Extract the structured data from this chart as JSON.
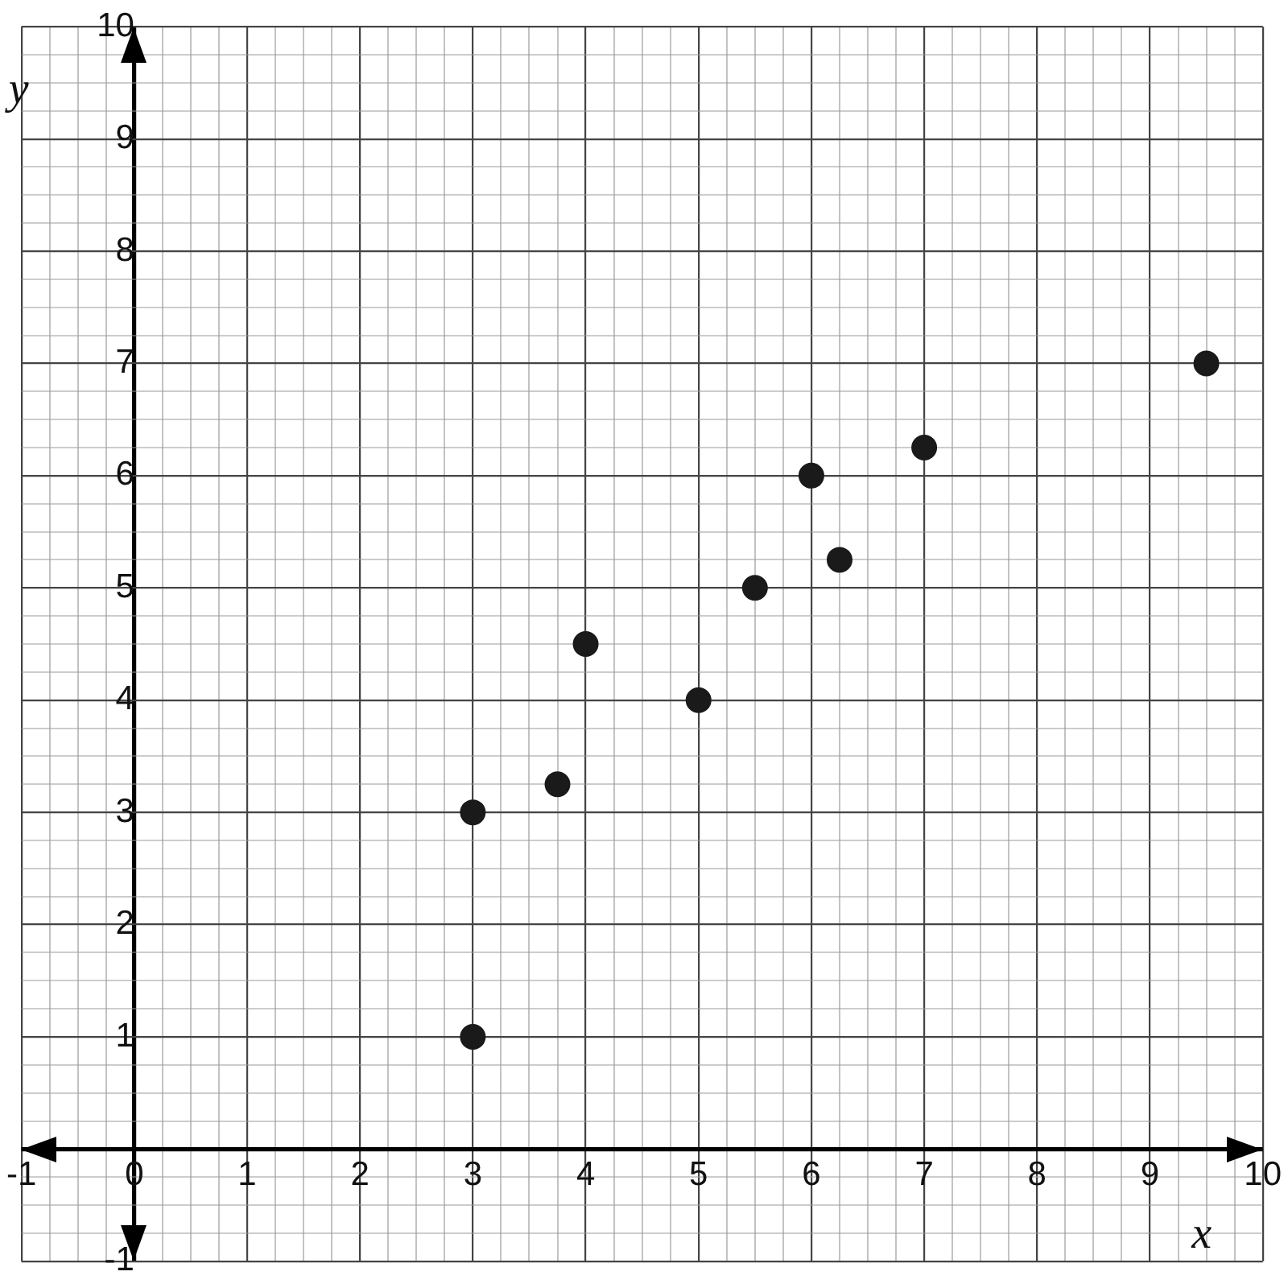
{
  "chart_data": {
    "type": "scatter",
    "xlabel": "x",
    "ylabel": "y",
    "x": [
      3,
      3,
      3.75,
      4,
      5,
      5.5,
      6,
      6.25,
      7,
      9.5
    ],
    "values": [
      1,
      3,
      3.25,
      4.5,
      4,
      5,
      6,
      5.25,
      6.25,
      7
    ],
    "color": "#1a1a1a",
    "marker": "circle",
    "grid": true,
    "legend": false,
    "xlim": [
      -1,
      10
    ],
    "ylim": [
      -1,
      10
    ],
    "xticks": [
      -1,
      {
        "value": -0.75,
        "label": null
      },
      {
        "value": -0.5,
        "label": null
      },
      {
        "value": -0.25,
        "label": null
      },
      0,
      {
        "value": 0.25,
        "label": null
      },
      {
        "value": 0.5,
        "label": null
      },
      {
        "value": 0.75,
        "label": null
      },
      1,
      {
        "value": 1.25,
        "label": null
      },
      {
        "value": 1.5,
        "label": null
      },
      {
        "value": 1.75,
        "label": null
      },
      2,
      {
        "value": 2.25,
        "label": null
      },
      {
        "value": 2.5,
        "label": null
      },
      {
        "value": 2.75,
        "label": null
      },
      3,
      {
        "value": 3.25,
        "label": null
      },
      {
        "value": 3.5,
        "label": null
      },
      {
        "value": 3.75,
        "label": null
      },
      4,
      {
        "value": 4.25,
        "label": null
      },
      {
        "value": 4.5,
        "label": null
      },
      {
        "value": 4.75,
        "label": null
      },
      5,
      {
        "value": 5.25,
        "label": null
      },
      {
        "value": 5.5,
        "label": null
      },
      {
        "value": 5.75,
        "label": null
      },
      6,
      {
        "value": 6.25,
        "label": null
      },
      {
        "value": 6.5,
        "label": null
      },
      {
        "value": 6.75,
        "label": null
      },
      7,
      {
        "value": 7.25,
        "label": null
      },
      {
        "value": 7.5,
        "label": null
      },
      {
        "value": 7.75,
        "label": null
      },
      8,
      {
        "value": 8.25,
        "label": null
      },
      {
        "value": 8.5,
        "label": null
      },
      {
        "value": 8.75,
        "label": null
      },
      9,
      {
        "value": 9.25,
        "label": null
      },
      {
        "value": 9.5,
        "label": null
      },
      {
        "value": 9.75,
        "label": null
      },
      10
    ],
    "yticks": [
      -1,
      {
        "value": -0.75,
        "label": null
      },
      {
        "value": -0.5,
        "label": null
      },
      {
        "value": -0.25,
        "label": null
      },
      {
        "value": 0,
        "label": null
      },
      {
        "value": 0.25,
        "label": null
      },
      {
        "value": 0.5,
        "label": null
      },
      {
        "value": 0.75,
        "label": null
      },
      1,
      {
        "value": 1.25,
        "label": null
      },
      {
        "value": 1.5,
        "label": null
      },
      {
        "value": 1.75,
        "label": null
      },
      2,
      {
        "value": 2.25,
        "label": null
      },
      {
        "value": 2.5,
        "label": null
      },
      {
        "value": 2.75,
        "label": null
      },
      3,
      {
        "value": 3.25,
        "label": null
      },
      {
        "value": 3.5,
        "label": null
      },
      {
        "value": 3.75,
        "label": null
      },
      4,
      {
        "value": 4.25,
        "label": null
      },
      {
        "value": 4.5,
        "label": null
      },
      {
        "value": 4.75,
        "label": null
      },
      5,
      {
        "value": 5.25,
        "label": null
      },
      {
        "value": 5.5,
        "label": null
      },
      {
        "value": 5.75,
        "label": null
      },
      6,
      {
        "value": 6.25,
        "label": null
      },
      {
        "value": 6.5,
        "label": null
      },
      {
        "value": 6.75,
        "label": null
      },
      7,
      {
        "value": 7.25,
        "label": null
      },
      {
        "value": 7.5,
        "label": null
      },
      {
        "value": 7.75,
        "label": null
      },
      8,
      {
        "value": 8.25,
        "label": null
      },
      {
        "value": 8.5,
        "label": null
      },
      {
        "value": 8.75,
        "label": null
      },
      9,
      {
        "value": 9.25,
        "label": null
      },
      {
        "value": 9.5,
        "label": null
      },
      {
        "value": 9.75,
        "label": null
      },
      10
    ]
  }
}
